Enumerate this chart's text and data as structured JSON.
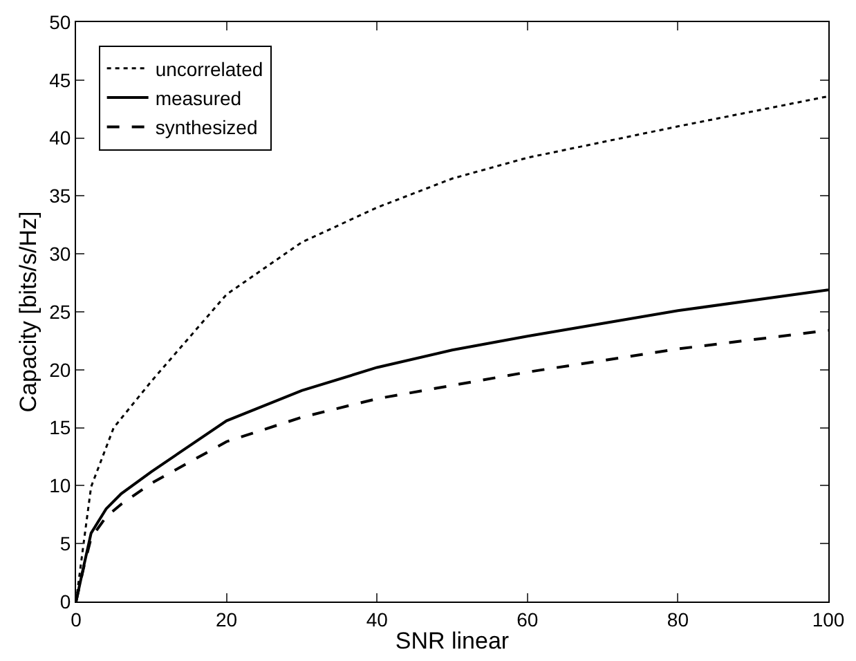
{
  "chart_data": {
    "type": "line",
    "xlabel": "SNR linear",
    "ylabel": "Capacity [bits/s/Hz]",
    "xlim": [
      0,
      100
    ],
    "ylim": [
      0,
      50
    ],
    "xticks": [
      0,
      20,
      40,
      60,
      80,
      100
    ],
    "yticks": [
      0,
      5,
      10,
      15,
      20,
      25,
      30,
      35,
      40,
      45,
      50
    ],
    "legend": "top left",
    "series": [
      {
        "name": "uncorrelated",
        "color": "#000000",
        "line_style": "dotted",
        "x": [
          0,
          1,
          2,
          5,
          10,
          20,
          30,
          40,
          50,
          60,
          80,
          100
        ],
        "values": [
          0,
          5,
          9.9,
          15,
          19,
          26.5,
          31,
          34,
          36.5,
          38.3,
          41,
          43.6
        ]
      },
      {
        "name": "measured",
        "color": "#000000",
        "line_style": "solid",
        "x": [
          0,
          1,
          2,
          4,
          6,
          10,
          20,
          30,
          40,
          50,
          60,
          80,
          100
        ],
        "values": [
          0,
          3,
          5.9,
          8,
          9.3,
          11.2,
          15.6,
          18.2,
          20.2,
          21.7,
          22.9,
          25.1,
          26.9
        ]
      },
      {
        "name": "synthesized",
        "color": "#000000",
        "line_style": "dashed",
        "x": [
          0,
          1,
          2,
          4,
          6,
          10,
          20,
          30,
          40,
          60,
          80,
          100
        ],
        "values": [
          0,
          2.9,
          5.5,
          7.3,
          8.4,
          10.2,
          13.8,
          15.9,
          17.5,
          19.8,
          21.8,
          23.4
        ]
      }
    ]
  }
}
